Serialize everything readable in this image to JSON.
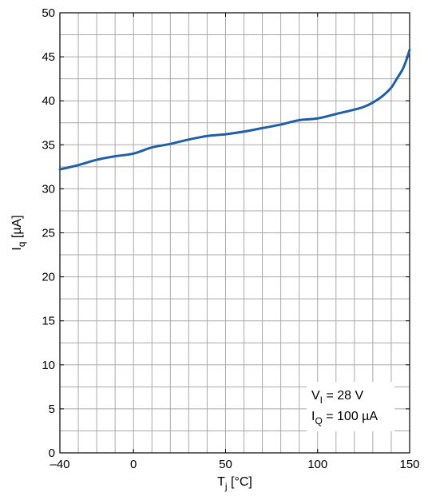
{
  "chart_data": {
    "type": "line",
    "xlabel": {
      "main": "T",
      "sub": "j",
      "unit": " [°C]"
    },
    "ylabel": {
      "main": "I",
      "sub": "q",
      "unit": " [µA]"
    },
    "xlim": [
      -40,
      150
    ],
    "ylim": [
      0,
      50
    ],
    "x_ticks": [
      -40,
      0,
      50,
      100,
      150
    ],
    "x_tick_labels": [
      "–40",
      "0",
      "50",
      "100",
      "150"
    ],
    "y_ticks": [
      0,
      5,
      10,
      15,
      20,
      25,
      30,
      35,
      40,
      45,
      50
    ],
    "y_tick_labels": [
      "0",
      "5",
      "10",
      "15",
      "20",
      "25",
      "30",
      "35",
      "40",
      "45",
      "50"
    ],
    "grid": true,
    "grid_x_step": 10,
    "grid_y_step": 2.5,
    "annotations": [
      {
        "main": "V",
        "sub": "I",
        "rest": " = 28 V"
      },
      {
        "main": "I",
        "sub": "Q",
        "rest": " = 100 µA"
      }
    ],
    "series": [
      {
        "color": "#1f5fa6",
        "x": [
          -40,
          -30,
          -20,
          -10,
          0,
          10,
          20,
          30,
          40,
          50,
          60,
          70,
          80,
          90,
          100,
          110,
          120,
          125,
          130,
          135,
          140,
          143,
          146,
          148,
          150
        ],
        "y": [
          32.2,
          32.7,
          33.3,
          33.7,
          34.0,
          34.7,
          35.1,
          35.6,
          36.0,
          36.2,
          36.5,
          36.9,
          37.3,
          37.8,
          38.0,
          38.5,
          39.0,
          39.3,
          39.8,
          40.5,
          41.5,
          42.5,
          43.5,
          44.5,
          45.8
        ]
      }
    ]
  }
}
